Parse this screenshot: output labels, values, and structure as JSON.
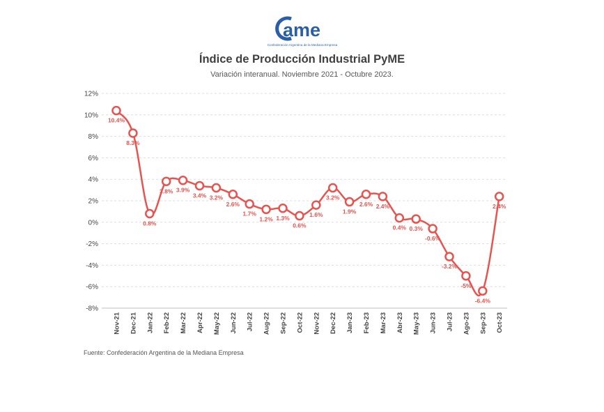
{
  "logo": {
    "wordmark": "ame",
    "caption": "Confederación Argentina de la Mediana Empresa",
    "color": "#2a5fa8"
  },
  "header": {
    "title": "Índice de Producción Industrial PyME",
    "subtitle": "Variación interanual. Noviembre 2021 - Octubre 2023."
  },
  "footer": {
    "source": "Fuente: Confederación Argentina de la Mediana Empresa"
  },
  "chart_data": {
    "type": "line",
    "title": "Índice de Producción Industrial PyME",
    "subtitle": "Variación interanual. Noviembre 2021 - Octubre 2023.",
    "xlabel": "",
    "ylabel": "",
    "ylim": [
      -8,
      12
    ],
    "yticks": [
      12,
      10,
      8,
      6,
      4,
      2,
      0,
      -2,
      -4,
      -6,
      -8
    ],
    "ytick_labels": [
      "12%",
      "10%",
      "8%",
      "6%",
      "4%",
      "2%",
      "0%",
      "-2%",
      "-4%",
      "-6%",
      "-8%"
    ],
    "grid": true,
    "legend": "none",
    "line_color": "#e8534f",
    "categories": [
      "Nov-21",
      "Dec-21",
      "Jan-22",
      "Feb-22",
      "Mar-22",
      "Apr-22",
      "May-22",
      "Jun-22",
      "Jul-22",
      "Aug-22",
      "Sep-22",
      "Oct-22",
      "Nov-22",
      "Dec-22",
      "Jan-23",
      "Feb-23",
      "Mar-23",
      "Abr-23",
      "May-23",
      "Jun-23",
      "Jul-23",
      "Ago-23",
      "Sep-23",
      "Oct-23"
    ],
    "series": [
      {
        "values": [
          10.4,
          8.3,
          0.8,
          3.8,
          3.9,
          3.4,
          3.2,
          2.6,
          1.7,
          1.2,
          1.3,
          0.6,
          1.6,
          3.2,
          1.9,
          2.6,
          2.4,
          0.4,
          0.3,
          -0.6,
          -3.2,
          -5,
          -6.4,
          2.4
        ],
        "labels": [
          "10.4%",
          "8.3%",
          "0.8%",
          "3.8%",
          "3.9%",
          "3.4%",
          "3.2%",
          "2.6%",
          "1.7%",
          "1.2%",
          "1.3%",
          "0.6%",
          "1.6%",
          "3.2%",
          "1.9%",
          "2.6%",
          "2.4%",
          "0.4%",
          "0.3%",
          "-0.6%",
          "-3.2%",
          "-5%",
          "-6.4%",
          "2.4%"
        ]
      }
    ]
  }
}
